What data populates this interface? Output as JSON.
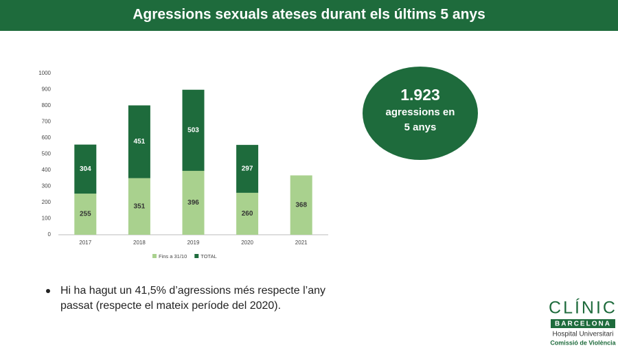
{
  "header": {
    "title": "Agressions sexuals ateses durant els últims 5 anys"
  },
  "chart_data": {
    "type": "stacked-bar",
    "categories": [
      "2017",
      "2018",
      "2019",
      "2020",
      "2021"
    ],
    "series": [
      {
        "name": "Fins a 31/10",
        "color": "#a9d18e",
        "values": [
          255,
          351,
          396,
          260,
          368
        ]
      },
      {
        "name": "TOTAL",
        "color": "#1e6b3c",
        "values": [
          304,
          451,
          503,
          297,
          null
        ]
      }
    ],
    "ylim": [
      0,
      1000
    ],
    "yticks": [
      0,
      100,
      200,
      300,
      400,
      500,
      600,
      700,
      800,
      900,
      1000
    ],
    "grid": false,
    "legend": "bottom"
  },
  "callout": {
    "number": "1.923",
    "line1": "agressions en",
    "line2": "5 anys"
  },
  "bullet": {
    "line1": "Hi ha hagut un 41,5% d’agressions més respecte l’any",
    "line2": "passat (respecte el mateix període del 2020)."
  },
  "logo": {
    "name": "CLÍNIC",
    "city": "BARCELONA",
    "subtitle": "Hospital Universitari",
    "unit": "Comissió de Violència"
  }
}
